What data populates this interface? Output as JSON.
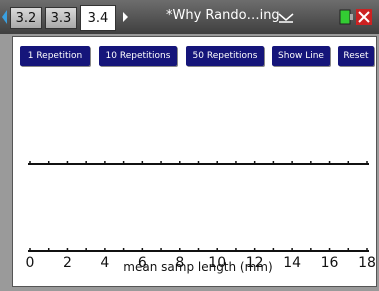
{
  "tabs": [
    "3.2",
    "3.3",
    "3.4"
  ],
  "document_title": "*Why Rando…ing",
  "buttons": [
    "1 Repetition",
    "10 Repetitions",
    "50 Repetitions",
    "Show Line",
    "Reset"
  ],
  "plot": {
    "xlabel": "mean samp length (mm)",
    "xlim": [
      0,
      18
    ],
    "xticks": [
      0,
      2,
      4,
      6,
      8,
      10,
      12,
      14,
      16,
      18
    ]
  }
}
